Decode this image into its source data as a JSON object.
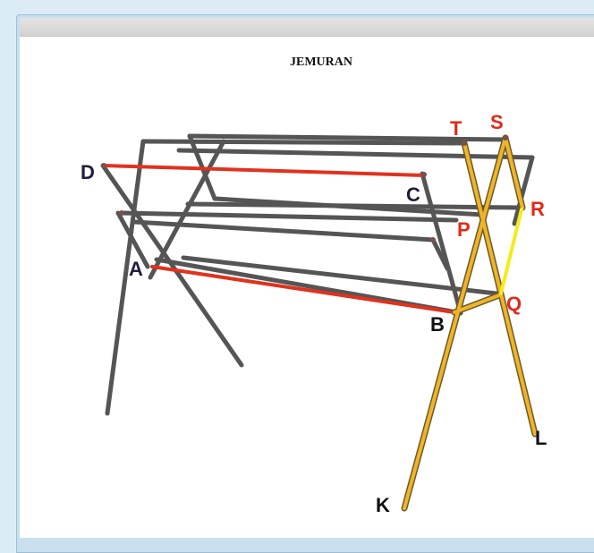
{
  "title": "JEMURAN",
  "colors": {
    "frame": "#555555",
    "red_line": "#e0321e",
    "yellow_leg": "#f0b428",
    "label_dark": "#1f1d3a",
    "label_red": "#e02a1a",
    "label_black": "#111111"
  },
  "points": {
    "A": "A",
    "B": "B",
    "C": "C",
    "D": "D",
    "P": "P",
    "Q": "Q",
    "R": "R",
    "S": "S",
    "T": "T",
    "K": "K",
    "L": "L"
  }
}
